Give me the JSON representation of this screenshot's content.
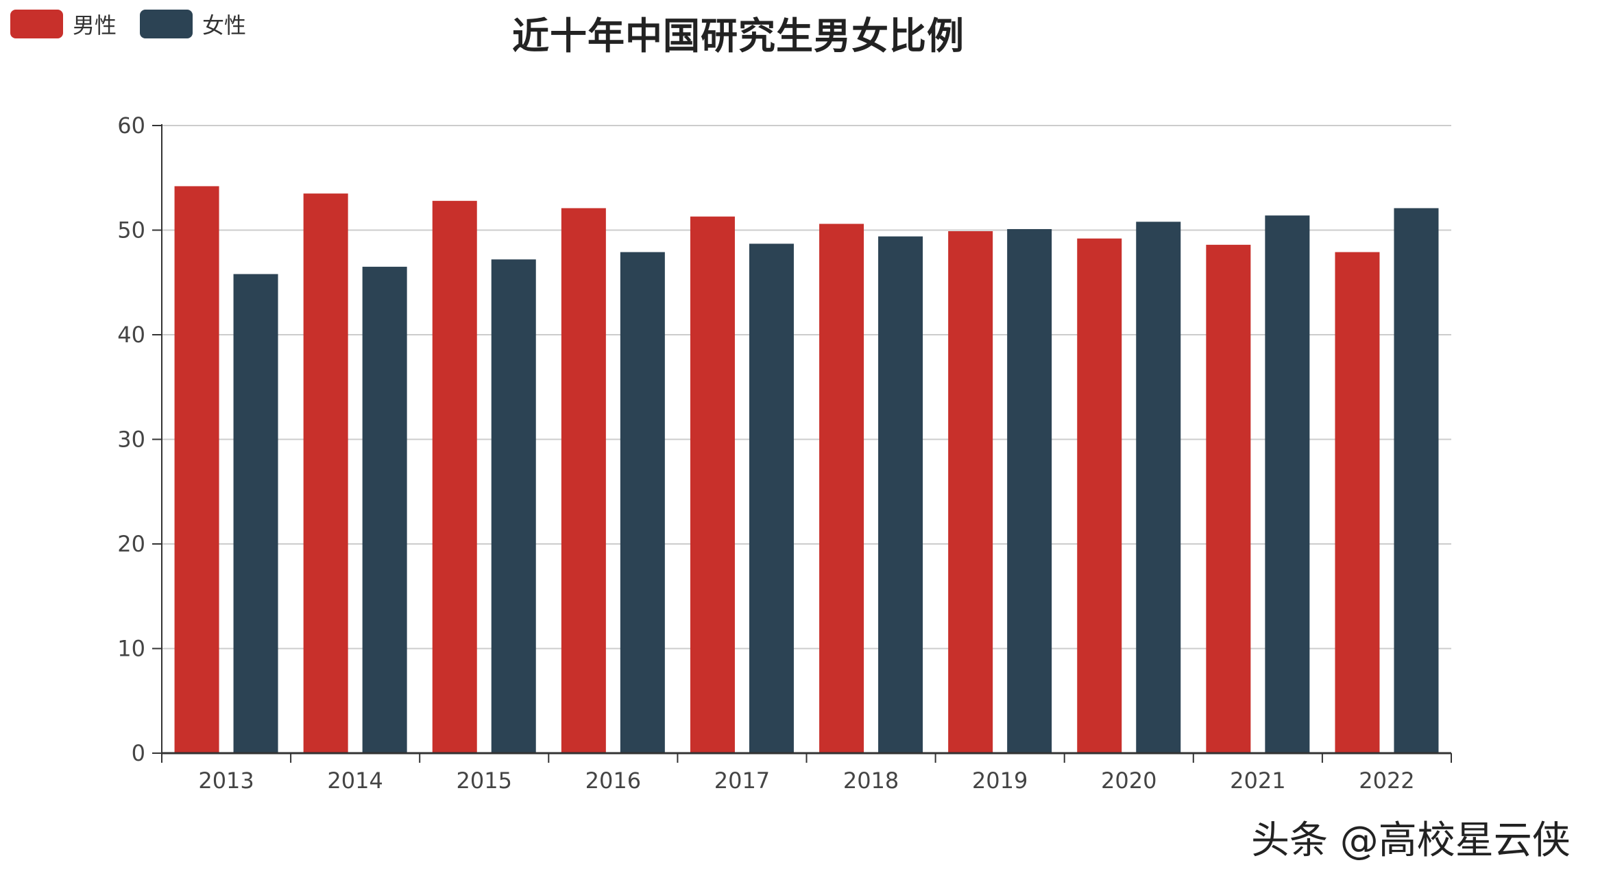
{
  "title": "近十年中国研究生男女比例",
  "legend": [
    {
      "name": "男性",
      "color": "#c8302b"
    },
    {
      "name": "女性",
      "color": "#2c4354"
    }
  ],
  "watermark": "头条 @高校星云侠",
  "chart_data": {
    "type": "bar",
    "title": "近十年中国研究生男女比例",
    "xlabel": "",
    "ylabel": "",
    "categories": [
      "2013",
      "2014",
      "2015",
      "2016",
      "2017",
      "2018",
      "2019",
      "2020",
      "2021",
      "2022"
    ],
    "series": [
      {
        "name": "男性",
        "color": "#c8302b",
        "values": [
          54.2,
          53.5,
          52.8,
          52.1,
          51.3,
          50.6,
          49.9,
          49.2,
          48.6,
          47.9
        ]
      },
      {
        "name": "女性",
        "color": "#2c4354",
        "values": [
          45.8,
          46.5,
          47.2,
          47.9,
          48.7,
          49.4,
          50.1,
          50.8,
          51.4,
          52.1
        ]
      }
    ],
    "yticks": [
      0,
      10,
      20,
      30,
      40,
      50,
      60
    ],
    "ylim": [
      0,
      60
    ],
    "grid": true,
    "legend_position": "top-left"
  }
}
